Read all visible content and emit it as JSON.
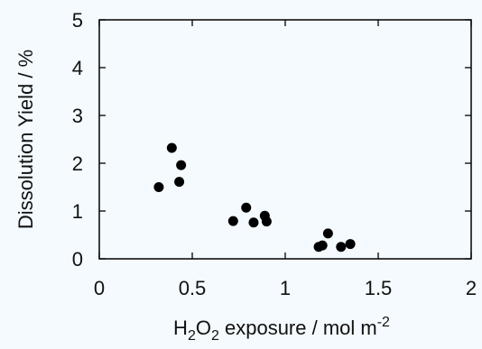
{
  "chart_data": {
    "type": "scatter",
    "xlabel": {
      "prefix": "H",
      "sub1": "2",
      "mid": "O",
      "sub2": "2",
      "rest": " exposure / mol m",
      "sup": "-2"
    },
    "ylabel": "Dissolution Yield / %",
    "xlim": [
      0,
      2
    ],
    "ylim": [
      0,
      5
    ],
    "xticks": [
      0,
      0.5,
      1,
      1.5,
      2
    ],
    "xtick_labels": [
      "0",
      "0.5",
      "1",
      "1.5",
      "2"
    ],
    "yticks": [
      0,
      1,
      2,
      3,
      4,
      5
    ],
    "ytick_labels": [
      "0",
      "1",
      "2",
      "3",
      "4",
      "5"
    ],
    "grid": false,
    "marker_color": "#000000",
    "series": [
      {
        "x": [
          0.32,
          0.39,
          0.43,
          0.44,
          0.72,
          0.79,
          0.83,
          0.89,
          0.9,
          1.18,
          1.2,
          1.23,
          1.3,
          1.35
        ],
        "y": [
          1.5,
          2.32,
          1.61,
          1.96,
          0.79,
          1.07,
          0.76,
          0.9,
          0.78,
          0.25,
          0.28,
          0.53,
          0.25,
          0.31
        ]
      }
    ]
  }
}
